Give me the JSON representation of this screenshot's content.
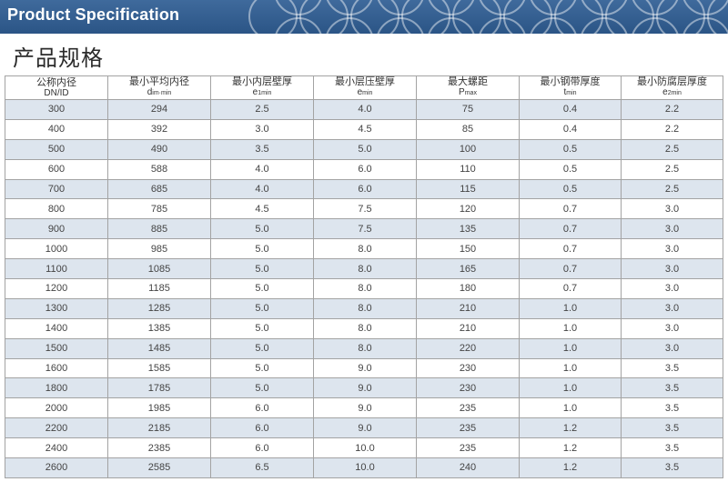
{
  "banner": {
    "title": "Product Specification"
  },
  "page_title": "产品规格",
  "table": {
    "headers": [
      {
        "main": "公称内径",
        "sub": "DN/ID",
        "sub_sym": "",
        "sub_idx": ""
      },
      {
        "main": "最小平均内径",
        "sub": "",
        "sub_sym": "d",
        "sub_idx": "im·min"
      },
      {
        "main": "最小内层壁厚",
        "sub": "",
        "sub_sym": "e",
        "sub_idx": "1min"
      },
      {
        "main": "最小层压壁厚",
        "sub": "",
        "sub_sym": "e",
        "sub_idx": "min"
      },
      {
        "main": "最大螺距",
        "sub": "",
        "sub_sym": "P",
        "sub_idx": "max"
      },
      {
        "main": "最小钢带厚度",
        "sub": "",
        "sub_sym": "t",
        "sub_idx": "min"
      },
      {
        "main": "最小防腐层厚度",
        "sub": "",
        "sub_sym": "e",
        "sub_idx": "2min"
      }
    ],
    "rows": [
      [
        "300",
        "294",
        "2.5",
        "4.0",
        "75",
        "0.4",
        "2.2"
      ],
      [
        "400",
        "392",
        "3.0",
        "4.5",
        "85",
        "0.4",
        "2.2"
      ],
      [
        "500",
        "490",
        "3.5",
        "5.0",
        "100",
        "0.5",
        "2.5"
      ],
      [
        "600",
        "588",
        "4.0",
        "6.0",
        "110",
        "0.5",
        "2.5"
      ],
      [
        "700",
        "685",
        "4.0",
        "6.0",
        "115",
        "0.5",
        "2.5"
      ],
      [
        "800",
        "785",
        "4.5",
        "7.5",
        "120",
        "0.7",
        "3.0"
      ],
      [
        "900",
        "885",
        "5.0",
        "7.5",
        "135",
        "0.7",
        "3.0"
      ],
      [
        "1000",
        "985",
        "5.0",
        "8.0",
        "150",
        "0.7",
        "3.0"
      ],
      [
        "1100",
        "1085",
        "5.0",
        "8.0",
        "165",
        "0.7",
        "3.0"
      ],
      [
        "1200",
        "1185",
        "5.0",
        "8.0",
        "180",
        "0.7",
        "3.0"
      ],
      [
        "1300",
        "1285",
        "5.0",
        "8.0",
        "210",
        "1.0",
        "3.0"
      ],
      [
        "1400",
        "1385",
        "5.0",
        "8.0",
        "210",
        "1.0",
        "3.0"
      ],
      [
        "1500",
        "1485",
        "5.0",
        "8.0",
        "220",
        "1.0",
        "3.0"
      ],
      [
        "1600",
        "1585",
        "5.0",
        "9.0",
        "230",
        "1.0",
        "3.5"
      ],
      [
        "1800",
        "1785",
        "5.0",
        "9.0",
        "230",
        "1.0",
        "3.5"
      ],
      [
        "2000",
        "1985",
        "6.0",
        "9.0",
        "235",
        "1.0",
        "3.5"
      ],
      [
        "2200",
        "2185",
        "6.0",
        "9.0",
        "235",
        "1.2",
        "3.5"
      ],
      [
        "2400",
        "2385",
        "6.0",
        "10.0",
        "235",
        "1.2",
        "3.5"
      ],
      [
        "2600",
        "2585",
        "6.5",
        "10.0",
        "240",
        "1.2",
        "3.5"
      ]
    ]
  },
  "colors": {
    "banner": "#2f5a8c",
    "row_shade": "#dde5ee",
    "border": "#a3a3a3"
  }
}
